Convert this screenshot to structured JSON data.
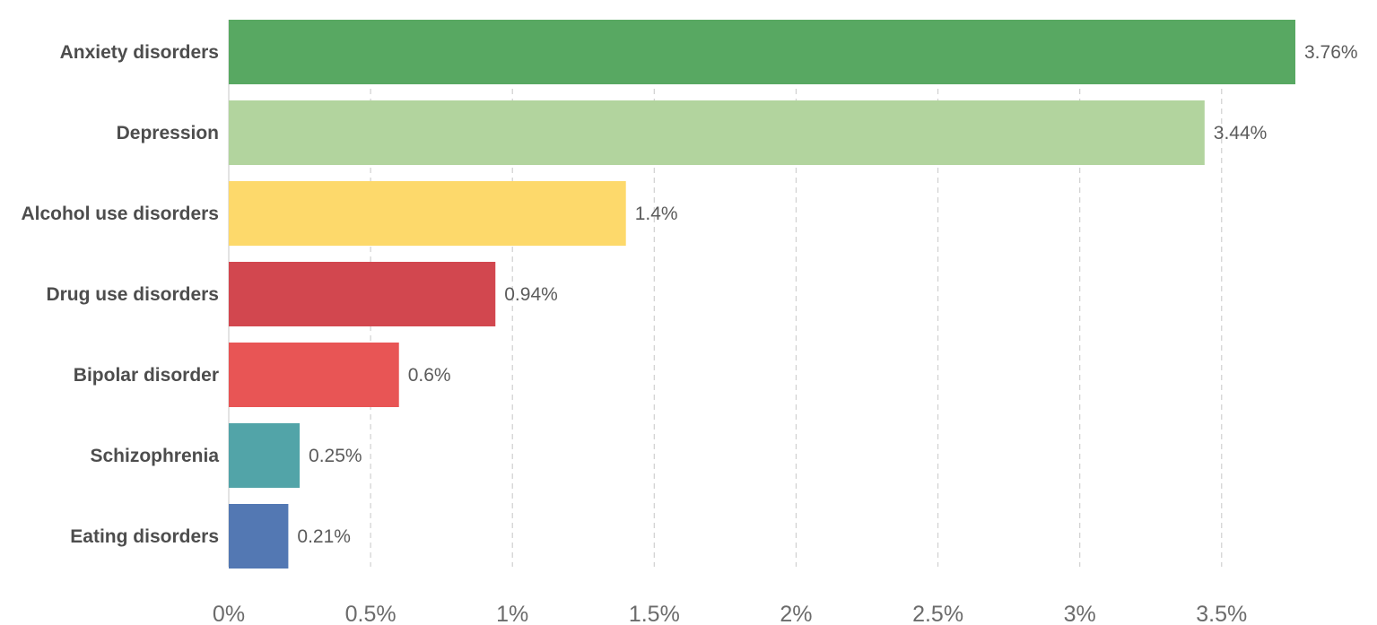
{
  "chart_data": {
    "type": "bar",
    "orientation": "horizontal",
    "categories": [
      "Anxiety disorders",
      "Depression",
      "Alcohol use disorders",
      "Drug use disorders",
      "Bipolar disorder",
      "Schizophrenia",
      "Eating disorders"
    ],
    "values": [
      3.76,
      3.44,
      1.4,
      0.94,
      0.6,
      0.25,
      0.21
    ],
    "value_labels": [
      "3.76%",
      "3.44%",
      "1.4%",
      "0.94%",
      "0.6%",
      "0.25%",
      "0.21%"
    ],
    "colors": [
      "#58a862",
      "#b2d49e",
      "#fdd96b",
      "#d2474f",
      "#e85555",
      "#52a4a8",
      "#5378b3"
    ],
    "x_ticks": [
      0,
      0.5,
      1,
      1.5,
      2,
      2.5,
      3,
      3.5
    ],
    "x_tick_labels": [
      "0%",
      "0.5%",
      "1%",
      "1.5%",
      "2%",
      "2.5%",
      "3%",
      "3.5%"
    ],
    "xlim": [
      0,
      3.76
    ],
    "grid": true,
    "legend": "none"
  }
}
